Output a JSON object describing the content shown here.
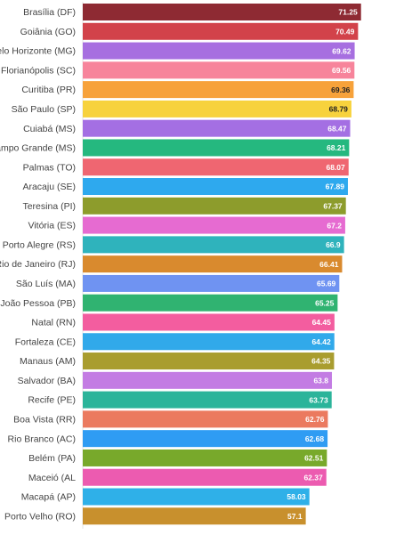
{
  "chart_data": {
    "type": "bar",
    "orientation": "horizontal",
    "title": "",
    "xlabel": "",
    "ylabel": "",
    "xlim": [
      0,
      72
    ],
    "grid": false,
    "legend": "none",
    "categories": [
      "Brasília (DF)",
      "Goiânia (GO)",
      "Belo Horizonte (MG)",
      "Florianópolis (SC)",
      "Curitiba (PR)",
      "São Paulo (SP)",
      "Cuiabá (MS)",
      "Campo Grande (MS)",
      "Palmas (TO)",
      "Aracaju (SE)",
      "Teresina (PI)",
      "Vitória (ES)",
      "Porto Alegre (RS)",
      "Rio de Janeiro (RJ)",
      "São Luís (MA)",
      "João Pessoa (PB)",
      "Natal (RN)",
      "Fortaleza (CE)",
      "Manaus (AM)",
      "Salvador (BA)",
      "Recife (PE)",
      "Boa Vista (RR)",
      "Rio Branco (AC)",
      "Belém (PA)",
      "Maceió (AL",
      "Macapá (AP)",
      "Porto Velho (RO)"
    ],
    "values": [
      71.25,
      70.49,
      69.62,
      69.56,
      69.36,
      68.79,
      68.47,
      68.21,
      68.07,
      67.89,
      67.37,
      67.2,
      66.9,
      66.41,
      65.69,
      65.25,
      64.45,
      64.42,
      64.35,
      63.8,
      63.73,
      62.76,
      62.68,
      62.51,
      62.37,
      58.03,
      57.1
    ],
    "value_labels": [
      "71.25",
      "70.49",
      "69.62",
      "69.56",
      "69.36",
      "68.79",
      "68.47",
      "68.21",
      "68.07",
      "67.89",
      "67.37",
      "67.2",
      "66.9",
      "66.41",
      "65.69",
      "65.25",
      "64.45",
      "64.42",
      "64.35",
      "63.8",
      "63.73",
      "62.76",
      "62.68",
      "62.51",
      "62.37",
      "58.03",
      "57.1"
    ],
    "colors": [
      "#8e2a33",
      "#d2424a",
      "#a76fe0",
      "#f7849b",
      "#f7a23a",
      "#f7d23d",
      "#a46fe3",
      "#25b87f",
      "#ef6671",
      "#2ea9ee",
      "#8d9c2c",
      "#e66bd1",
      "#2fb3bc",
      "#d98a2e",
      "#6f93f2",
      "#30b371",
      "#f35d9f",
      "#31a9ea",
      "#a99d2f",
      "#c37ce3",
      "#2bb49a",
      "#eb7a5f",
      "#2f9cf3",
      "#78a92b",
      "#ec5bb0",
      "#2fb0e8",
      "#c8902d"
    ],
    "label_colors": [
      "#ffffff",
      "#ffffff",
      "#ffffff",
      "#ffffff",
      "#222222",
      "#222222",
      "#ffffff",
      "#ffffff",
      "#ffffff",
      "#ffffff",
      "#ffffff",
      "#ffffff",
      "#ffffff",
      "#ffffff",
      "#ffffff",
      "#ffffff",
      "#ffffff",
      "#ffffff",
      "#ffffff",
      "#ffffff",
      "#ffffff",
      "#ffffff",
      "#ffffff",
      "#ffffff",
      "#ffffff",
      "#ffffff",
      "#ffffff"
    ]
  }
}
